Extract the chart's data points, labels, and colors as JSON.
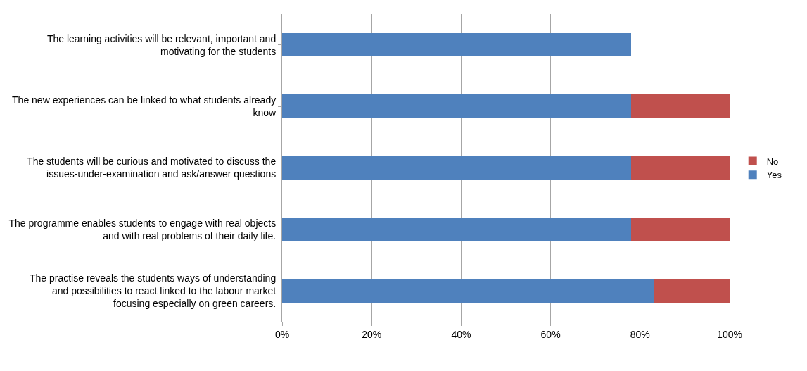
{
  "chart_data": {
    "type": "bar",
    "orientation": "horizontal",
    "stacked": true,
    "categories": [
      "The learning activities will be relevant, important and motivating for the students",
      "The new experiences can be linked to what students already know",
      "The students will be curious and motivated to discuss the issues-under-examination and ask/answer questions",
      "The programme enables students to engage with real objects and with real problems of their daily life.",
      "The practise reveals the students ways of understanding and possibilities to react linked to the labour market focusing especially on green careers."
    ],
    "series": [
      {
        "name": "Yes",
        "color": "#4f81bd",
        "values": [
          78,
          78,
          78,
          78,
          83
        ]
      },
      {
        "name": "No",
        "color": "#c0504d",
        "values": [
          null,
          22,
          22,
          22,
          17
        ]
      }
    ],
    "xlim": [
      0,
      100
    ],
    "xticks": [
      {
        "value": 0,
        "label": "0%"
      },
      {
        "value": 20,
        "label": "20%"
      },
      {
        "value": 40,
        "label": "40%"
      },
      {
        "value": 60,
        "label": "60%"
      },
      {
        "value": 80,
        "label": "80%"
      },
      {
        "value": 100,
        "label": "100%"
      }
    ],
    "grid": "x",
    "legend": "right"
  }
}
